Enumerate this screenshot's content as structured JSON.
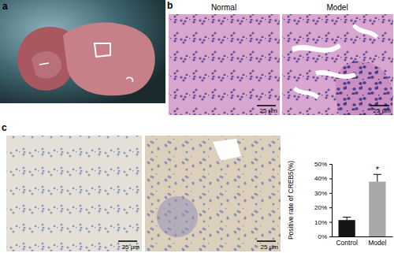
{
  "panels": [
    {
      "label": "a"
    },
    {
      "label": "b",
      "titles": [
        "Normal",
        "Model"
      ],
      "scale_bars": [
        "25 μm",
        "25 μm"
      ]
    },
    {
      "label": "c",
      "scale_bars": [
        "25 μm",
        "25 μm"
      ]
    }
  ],
  "chart_data": {
    "type": "bar",
    "y_label": "Positive rate of CREB5(%)",
    "categories": [
      "Control",
      "Model"
    ],
    "values": [
      11.3,
      37.8
    ],
    "errors": [
      2,
      5
    ],
    "colors": [
      "#151515",
      "#a8a8a8"
    ],
    "ylim": [
      0,
      50
    ],
    "yticks": [
      {
        "value": 0,
        "label": "0%"
      },
      {
        "value": 10,
        "label": "10%"
      },
      {
        "value": 20,
        "label": "20%"
      },
      {
        "value": 30,
        "label": "30%"
      },
      {
        "value": 40,
        "label": "40%"
      },
      {
        "value": 50,
        "label": "50%"
      }
    ],
    "annotations": [
      {
        "text": "*",
        "category": "Model"
      }
    ],
    "grid": false
  }
}
